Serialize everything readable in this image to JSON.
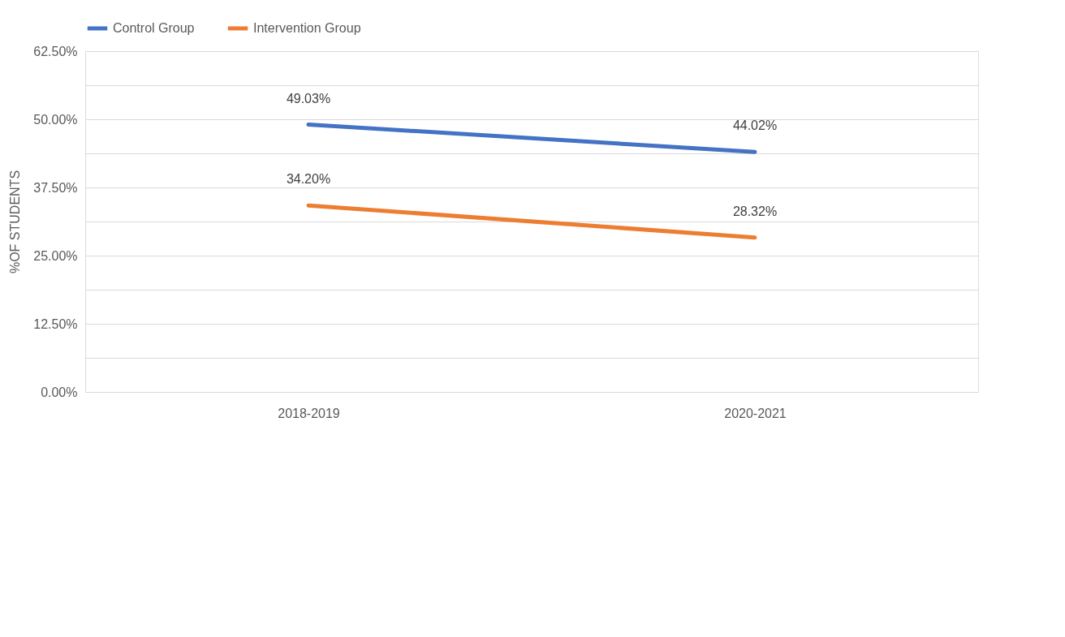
{
  "chart_data": {
    "type": "line",
    "ylabel": "%OF STUDENTS",
    "categories": [
      "2018-2019",
      "2020-2021"
    ],
    "series": [
      {
        "name": "Control Group",
        "color": "#4472c4",
        "values": [
          49.03,
          44.02
        ],
        "value_labels": [
          "49.03%",
          "44.02%"
        ]
      },
      {
        "name": "Intervention Group",
        "color": "#ed7d31",
        "values": [
          34.2,
          28.32
        ],
        "value_labels": [
          "34.20%",
          "28.32%"
        ]
      }
    ],
    "ylim": [
      0,
      62.5
    ],
    "yticks": [
      {
        "value": 0,
        "label": "0.00%"
      },
      {
        "value": 6.25,
        "label": null
      },
      {
        "value": 12.5,
        "label": "12.50%"
      },
      {
        "value": 18.75,
        "label": null
      },
      {
        "value": 25,
        "label": "25.00%"
      },
      {
        "value": 31.25,
        "label": null
      },
      {
        "value": 37.5,
        "label": "37.50%"
      },
      {
        "value": 43.75,
        "label": null
      },
      {
        "value": 50,
        "label": "50.00%"
      },
      {
        "value": 56.25,
        "label": null
      },
      {
        "value": 62.5,
        "label": "62.50%"
      }
    ],
    "grid": true,
    "legend": "top",
    "marker": "none",
    "line_style": "solid"
  }
}
